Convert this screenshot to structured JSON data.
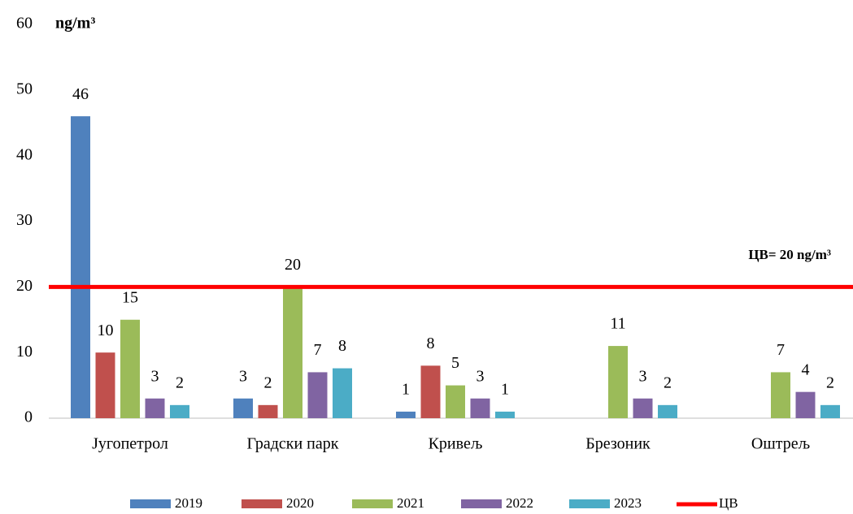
{
  "chart_data": {
    "type": "bar",
    "y_unit": "ng/m³",
    "annotation": "ЦВ= 20 ng/m³",
    "categories": [
      "Југопетрол",
      "Градски парк",
      "Кривељ",
      "Брезоник",
      "Оштрељ"
    ],
    "series": [
      {
        "name": "2019",
        "color": "#4f81bd",
        "values": [
          46,
          3,
          1,
          null,
          null
        ]
      },
      {
        "name": "2020",
        "color": "#c0504d",
        "values": [
          10,
          2,
          8,
          null,
          null
        ]
      },
      {
        "name": "2021",
        "color": "#9bbb59",
        "values": [
          15,
          20,
          5,
          11,
          7
        ]
      },
      {
        "name": "2022",
        "color": "#8064a2",
        "values": [
          3,
          7,
          3,
          3,
          4
        ]
      },
      {
        "name": "2023",
        "color": "#4bacc6",
        "values": [
          2,
          7.6,
          1,
          2,
          2
        ],
        "value_labels": [
          "2",
          "8",
          "1",
          "2",
          "2"
        ]
      }
    ],
    "reference_line": {
      "name": "ЦВ",
      "value": 20,
      "color": "#ff0000"
    },
    "ylim": [
      0,
      60
    ],
    "yticks": [
      0,
      10,
      20,
      30,
      40,
      50,
      60
    ],
    "grid": false
  }
}
